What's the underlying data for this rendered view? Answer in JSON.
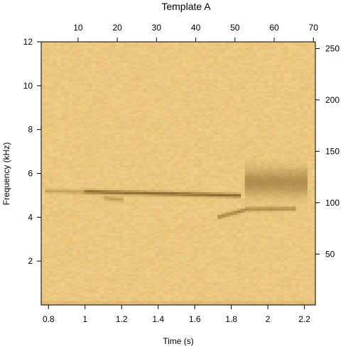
{
  "chart_data": {
    "type": "heatmap",
    "title": "Template A",
    "xlabel": "Time (s)",
    "ylabel": "Frequency (kHz)",
    "xlim": [
      0.76,
      2.26
    ],
    "ylim": [
      0,
      12
    ],
    "x_ticks": [
      0.8,
      1.0,
      1.2,
      1.4,
      1.6,
      1.8,
      2.0,
      2.2
    ],
    "x_tick_labels": [
      "0.8",
      "1",
      "1.2",
      "1.4",
      "1.6",
      "1.8",
      "2",
      "2.2"
    ],
    "y_ticks": [
      2,
      4,
      6,
      8,
      10,
      12
    ],
    "y_tick_labels": [
      "2",
      "4",
      "6",
      "8",
      "10",
      "12"
    ],
    "top_axis": {
      "ticks": [
        10,
        20,
        30,
        40,
        50,
        60,
        70
      ],
      "labels": [
        "10",
        "20",
        "30",
        "40",
        "50",
        "60",
        "70"
      ],
      "range": [
        0.6,
        70.5
      ]
    },
    "right_axis": {
      "ticks": [
        50,
        100,
        150,
        200,
        250
      ],
      "labels": [
        "50",
        "100",
        "150",
        "200",
        "250"
      ],
      "range": [
        0.5,
        256.5
      ]
    },
    "grid": false,
    "colors": {
      "background": "#e8c27a",
      "light": "#f0cf88",
      "dark": "#6b4a12"
    },
    "features": [
      {
        "t0": 0.78,
        "t1": 1.0,
        "f0": 5.22,
        "f1": 5.16,
        "strength": 0.3
      },
      {
        "t0": 1.0,
        "t1": 1.85,
        "f0": 5.18,
        "f1": 5.0,
        "strength": 0.75
      },
      {
        "t0": 1.1,
        "t1": 1.22,
        "f0": 4.9,
        "f1": 4.8,
        "strength": 0.35
      },
      {
        "t0": 1.72,
        "t1": 1.88,
        "f0": 4.0,
        "f1": 4.35,
        "strength": 0.55
      },
      {
        "t0": 1.88,
        "t1": 2.16,
        "f0": 4.38,
        "f1": 4.4,
        "strength": 0.5
      },
      {
        "t0": 1.88,
        "t1": 2.22,
        "f0": 5.6,
        "f1": 5.6,
        "strength": 0.45,
        "spread": 0.6
      }
    ]
  }
}
